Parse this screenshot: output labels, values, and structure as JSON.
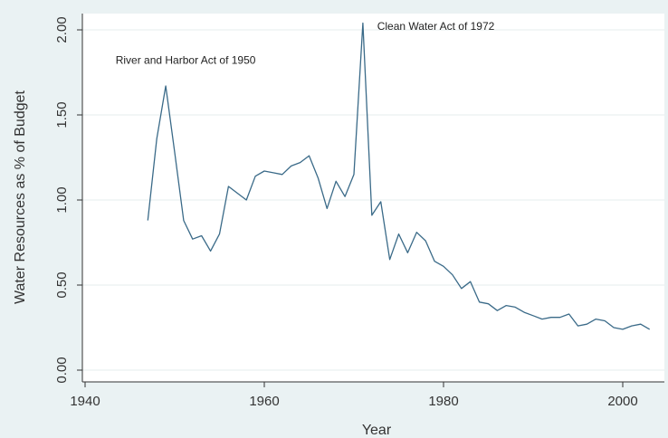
{
  "chart_data": {
    "type": "line",
    "title": "",
    "xlabel": "Year",
    "ylabel": "Water Resources as % of Budget",
    "xlim": [
      1940,
      2004
    ],
    "ylim": [
      0,
      2.05
    ],
    "xticks": [
      1940,
      1960,
      1980,
      2000
    ],
    "yticks": [
      "0.00",
      "0.50",
      "1.00",
      "1.50",
      "2.00"
    ],
    "grid": true,
    "colors": {
      "line": "#3a6a88",
      "plot_bg": "#ffffff",
      "page_bg": "#eaf2f3",
      "grid": "#e4ecee"
    },
    "series": [
      {
        "x": [
          1947,
          1948,
          1949,
          1950,
          1951,
          1952,
          1953,
          1954,
          1955,
          1956,
          1957,
          1958,
          1959,
          1960,
          1961,
          1962,
          1963,
          1964,
          1965,
          1966,
          1967,
          1968,
          1969,
          1970,
          1971,
          1972,
          1973,
          1974,
          1975,
          1976,
          1977,
          1978,
          1979,
          1980,
          1981,
          1982,
          1983,
          1984,
          1985,
          1986,
          1987,
          1988,
          1989,
          1990,
          1991,
          1992,
          1993,
          1994,
          1995,
          1996,
          1997,
          1998,
          1999,
          2000,
          2001,
          2002,
          2003
        ],
        "values": [
          0.88,
          1.36,
          1.67,
          1.28,
          0.88,
          0.77,
          0.79,
          0.7,
          0.8,
          1.08,
          1.04,
          1.0,
          1.14,
          1.17,
          1.16,
          1.15,
          1.2,
          1.22,
          1.26,
          1.13,
          0.95,
          1.11,
          1.02,
          1.15,
          2.04,
          0.91,
          0.99,
          0.65,
          0.8,
          0.69,
          0.81,
          0.76,
          0.64,
          0.61,
          0.56,
          0.48,
          0.52,
          0.4,
          0.39,
          0.35,
          0.38,
          0.37,
          0.34,
          0.32,
          0.3,
          0.31,
          0.31,
          0.33,
          0.26,
          0.27,
          0.3,
          0.29,
          0.25,
          0.24,
          0.26,
          0.27,
          0.24
        ]
      }
    ],
    "annotations": [
      {
        "text": "River and Harbor Act of 1950",
        "x": 1943.4,
        "y": 1.8
      },
      {
        "text": "Clean Water Act of 1972",
        "x": 1972.6,
        "y": 2.0
      }
    ]
  }
}
